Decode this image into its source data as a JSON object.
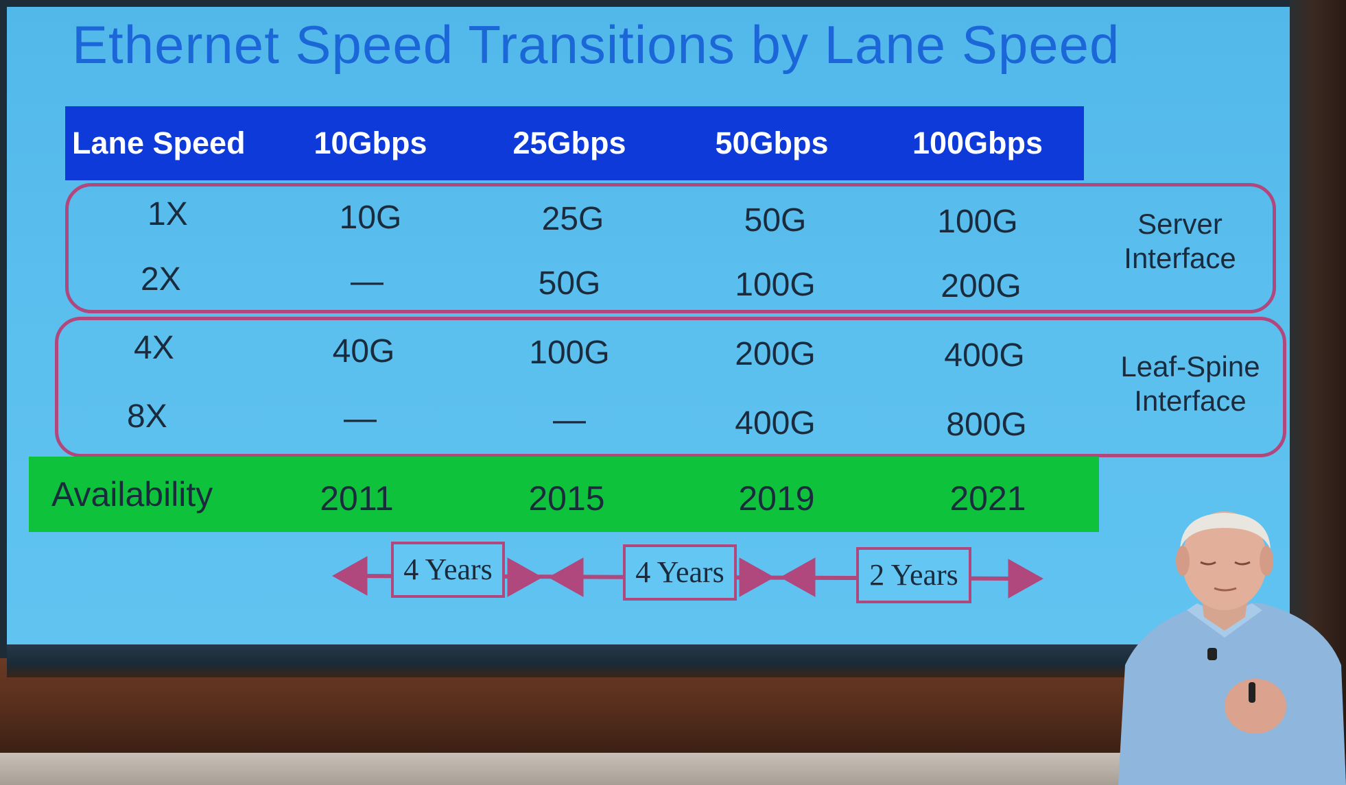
{
  "slide": {
    "title": "Ethernet Speed Transitions by Lane Speed",
    "header": {
      "row_label": "Lane Speed",
      "columns": [
        "10Gbps",
        "25Gbps",
        "50Gbps",
        "100Gbps"
      ]
    },
    "rows": [
      {
        "label": "1X",
        "values": [
          "10G",
          "25G",
          "50G",
          "100G"
        ]
      },
      {
        "label": "2X",
        "values": [
          "—",
          "50G",
          "100G",
          "200G"
        ]
      },
      {
        "label": "4X",
        "values": [
          "40G",
          "100G",
          "200G",
          "400G"
        ]
      },
      {
        "label": "8X",
        "values": [
          "—",
          "—",
          "400G",
          "800G"
        ]
      }
    ],
    "groups": [
      {
        "label_line1": "Server",
        "label_line2": "Interface"
      },
      {
        "label_line1": "Leaf-Spine",
        "label_line2": "Interface"
      }
    ],
    "availability": {
      "label": "Availability",
      "years": [
        "2011",
        "2015",
        "2019",
        "2021"
      ]
    },
    "intervals": [
      "4 Years",
      "4 Years",
      "2 Years"
    ]
  },
  "colors": {
    "screen": "#5cc0ef",
    "header_bar": "#0d3ad8",
    "availability_bar": "#0fc23c",
    "group_outline": "#b0477d",
    "title_text": "#1b67d8"
  }
}
